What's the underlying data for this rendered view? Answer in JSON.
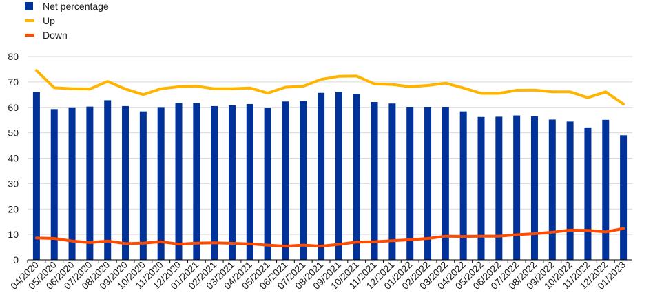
{
  "chart_data": {
    "type": "bar",
    "categories": [
      "04/2020",
      "05/2020",
      "06/2020",
      "07/2020",
      "08/2020",
      "09/2020",
      "10/2020",
      "11/2020",
      "12/2020",
      "01/2021",
      "02/2021",
      "03/2021",
      "04/2021",
      "05/2021",
      "06/2021",
      "07/2021",
      "08/2021",
      "09/2021",
      "10/2021",
      "11/2021",
      "12/2021",
      "01/2022",
      "02/2022",
      "03/2022",
      "04/2022",
      "05/2022",
      "06/2022",
      "07/2022",
      "08/2022",
      "09/2022",
      "10/2022",
      "11/2022",
      "12/2022",
      "01/2023"
    ],
    "series": [
      {
        "name": "Net percentage",
        "type": "bar",
        "color": "#003299",
        "values": [
          66,
          59.3,
          60,
          60.3,
          62.8,
          60.5,
          58.4,
          60.1,
          61.7,
          61.7,
          60.5,
          60.8,
          61.3,
          59.8,
          62.3,
          62.5,
          65.7,
          66.1,
          65.3,
          62.1,
          61.5,
          60.2,
          60.2,
          60.2,
          58.4,
          56.2,
          56.3,
          56.8,
          56.5,
          55.2,
          54.4,
          52.1,
          55.1,
          49
        ]
      },
      {
        "name": "Up",
        "type": "line",
        "color": "#ffb400",
        "values": [
          74.5,
          67.7,
          67.3,
          67.2,
          70.2,
          67.2,
          65,
          67.3,
          68.1,
          68.3,
          67.3,
          67.3,
          67.6,
          65.6,
          67.9,
          68.3,
          71,
          72.2,
          72.3,
          69.2,
          69,
          68.1,
          68.6,
          69.5,
          67.6,
          65.5,
          65.5,
          66.7,
          66.8,
          66.1,
          66.1,
          63.8,
          66.1,
          61.3
        ]
      },
      {
        "name": "Down",
        "type": "line",
        "color": "#ff4b00",
        "values": [
          8.6,
          8.4,
          7.4,
          6.8,
          7.4,
          6.4,
          6.6,
          7.1,
          6.2,
          6.6,
          6.7,
          6.5,
          6.3,
          5.8,
          5.4,
          5.8,
          5.4,
          6.1,
          7.0,
          7.1,
          7.5,
          7.9,
          8.4,
          9.3,
          9.2,
          9.3,
          9.3,
          9.9,
          10.3,
          10.9,
          11.7,
          11.6,
          11.0,
          12.3
        ]
      }
    ],
    "ylim": [
      0,
      80
    ],
    "yticks": [
      "0",
      "10",
      "20",
      "30",
      "40",
      "50",
      "60",
      "70",
      "80"
    ],
    "grid": true,
    "legend": "top-left",
    "title": "",
    "xlabel": "",
    "ylabel": ""
  }
}
